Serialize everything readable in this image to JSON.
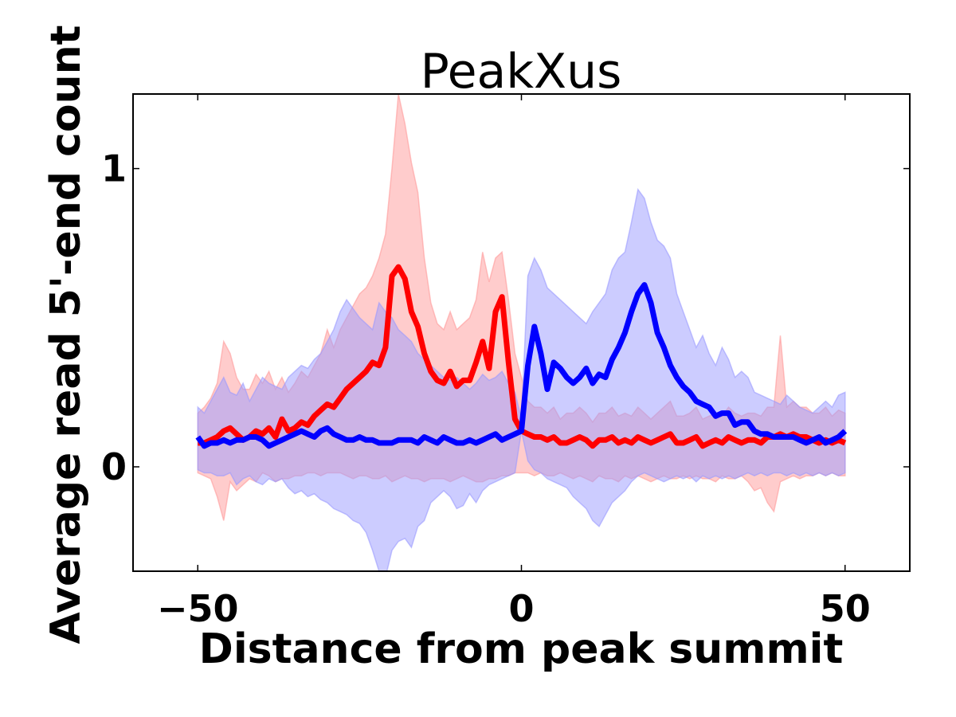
{
  "chart_data": {
    "type": "line",
    "title": "PeakXus",
    "xlabel": "Distance from peak summit",
    "ylabel": "Average read 5'-end count",
    "xlim": [
      -60,
      60
    ],
    "ylim": [
      -0.35,
      1.25
    ],
    "xticks": [
      -50,
      0,
      50
    ],
    "xtick_labels": [
      "−50",
      "0",
      "50"
    ],
    "yticks": [
      0,
      1
    ],
    "ytick_labels": [
      "0",
      "1"
    ],
    "grid": false,
    "legend": "none",
    "x": [
      -50,
      -49,
      -48,
      -47,
      -46,
      -45,
      -44,
      -43,
      -42,
      -41,
      -40,
      -39,
      -38,
      -37,
      -36,
      -35,
      -34,
      -33,
      -32,
      -31,
      -30,
      -29,
      -28,
      -27,
      -26,
      -25,
      -24,
      -23,
      -22,
      -21,
      -20,
      -19,
      -18,
      -17,
      -16,
      -15,
      -14,
      -13,
      -12,
      -11,
      -10,
      -9,
      -8,
      -7,
      -6,
      -5,
      -4,
      -3,
      -2,
      -1,
      0,
      1,
      2,
      3,
      4,
      5,
      6,
      7,
      8,
      9,
      10,
      11,
      12,
      13,
      14,
      15,
      16,
      17,
      18,
      19,
      20,
      21,
      22,
      23,
      24,
      25,
      26,
      27,
      28,
      29,
      30,
      31,
      32,
      33,
      34,
      35,
      36,
      37,
      38,
      39,
      40,
      41,
      42,
      43,
      44,
      45,
      46,
      47,
      48,
      49,
      50
    ],
    "series": [
      {
        "color": "#ff0000",
        "band_color": "#ff9999",
        "values": [
          0.08,
          0.08,
          0.09,
          0.1,
          0.12,
          0.13,
          0.11,
          0.09,
          0.1,
          0.12,
          0.11,
          0.13,
          0.1,
          0.16,
          0.12,
          0.13,
          0.15,
          0.14,
          0.17,
          0.19,
          0.21,
          0.2,
          0.23,
          0.26,
          0.28,
          0.3,
          0.32,
          0.35,
          0.34,
          0.4,
          0.64,
          0.67,
          0.63,
          0.52,
          0.47,
          0.38,
          0.32,
          0.29,
          0.28,
          0.32,
          0.27,
          0.29,
          0.29,
          0.35,
          0.42,
          0.33,
          0.52,
          0.57,
          0.35,
          0.16,
          0.12,
          0.11,
          0.1,
          0.1,
          0.09,
          0.1,
          0.08,
          0.08,
          0.09,
          0.1,
          0.09,
          0.07,
          0.09,
          0.09,
          0.1,
          0.08,
          0.09,
          0.08,
          0.1,
          0.09,
          0.08,
          0.09,
          0.1,
          0.11,
          0.08,
          0.08,
          0.09,
          0.1,
          0.07,
          0.08,
          0.09,
          0.08,
          0.1,
          0.09,
          0.08,
          0.09,
          0.09,
          0.08,
          0.1,
          0.1,
          0.11,
          0.1,
          0.11,
          0.1,
          0.1,
          0.09,
          0.08,
          0.09,
          0.08,
          0.09,
          0.08
        ],
        "lower": [
          -0.02,
          -0.03,
          -0.04,
          -0.1,
          -0.18,
          -0.05,
          -0.08,
          -0.06,
          -0.04,
          -0.05,
          -0.02,
          -0.03,
          -0.05,
          -0.04,
          -0.04,
          -0.03,
          -0.03,
          -0.02,
          -0.02,
          -0.03,
          -0.02,
          -0.02,
          -0.02,
          -0.03,
          -0.04,
          -0.03,
          -0.03,
          -0.04,
          -0.04,
          -0.03,
          -0.05,
          -0.04,
          -0.03,
          -0.04,
          -0.04,
          -0.05,
          -0.04,
          -0.04,
          -0.04,
          -0.05,
          -0.04,
          -0.03,
          -0.04,
          -0.05,
          -0.05,
          -0.04,
          -0.04,
          -0.03,
          -0.03,
          -0.02,
          -0.02,
          -0.02,
          -0.03,
          -0.02,
          -0.03,
          -0.03,
          -0.02,
          -0.03,
          -0.04,
          -0.03,
          -0.04,
          -0.05,
          -0.03,
          -0.04,
          -0.04,
          -0.05,
          -0.03,
          -0.04,
          -0.03,
          -0.04,
          -0.05,
          -0.04,
          -0.03,
          -0.04,
          -0.04,
          -0.03,
          -0.04,
          -0.03,
          -0.04,
          -0.04,
          -0.05,
          -0.03,
          -0.04,
          -0.04,
          -0.03,
          -0.05,
          -0.08,
          -0.07,
          -0.12,
          -0.15,
          -0.05,
          -0.04,
          -0.03,
          -0.04,
          -0.03,
          -0.03,
          -0.02,
          -0.03,
          -0.02,
          -0.03,
          -0.03
        ],
        "upper": [
          0.18,
          0.2,
          0.23,
          0.28,
          0.42,
          0.38,
          0.3,
          0.26,
          0.26,
          0.31,
          0.28,
          0.32,
          0.26,
          0.3,
          0.25,
          0.28,
          0.32,
          0.3,
          0.34,
          0.38,
          0.46,
          0.4,
          0.46,
          0.5,
          0.54,
          0.58,
          0.6,
          0.64,
          0.7,
          0.78,
          1.0,
          1.25,
          1.15,
          1.02,
          0.92,
          0.7,
          0.55,
          0.48,
          0.46,
          0.52,
          0.46,
          0.48,
          0.5,
          0.56,
          0.72,
          0.62,
          0.7,
          0.72,
          0.56,
          0.38,
          0.3,
          0.22,
          0.2,
          0.2,
          0.18,
          0.2,
          0.16,
          0.18,
          0.18,
          0.2,
          0.18,
          0.15,
          0.18,
          0.18,
          0.2,
          0.17,
          0.18,
          0.17,
          0.2,
          0.18,
          0.16,
          0.18,
          0.2,
          0.22,
          0.17,
          0.17,
          0.18,
          0.2,
          0.16,
          0.17,
          0.18,
          0.17,
          0.2,
          0.18,
          0.17,
          0.18,
          0.18,
          0.17,
          0.2,
          0.2,
          0.44,
          0.2,
          0.22,
          0.2,
          0.2,
          0.18,
          0.18,
          0.2,
          0.17,
          0.19,
          0.18
        ]
      },
      {
        "color": "#0000ff",
        "band_color": "#9999ff",
        "values": [
          0.1,
          0.07,
          0.08,
          0.08,
          0.09,
          0.08,
          0.09,
          0.09,
          0.1,
          0.1,
          0.09,
          0.07,
          0.08,
          0.09,
          0.1,
          0.11,
          0.12,
          0.11,
          0.1,
          0.12,
          0.13,
          0.11,
          0.1,
          0.09,
          0.09,
          0.1,
          0.09,
          0.09,
          0.08,
          0.08,
          0.08,
          0.09,
          0.09,
          0.09,
          0.08,
          0.1,
          0.09,
          0.08,
          0.1,
          0.09,
          0.08,
          0.08,
          0.09,
          0.08,
          0.09,
          0.1,
          0.11,
          0.09,
          0.1,
          0.11,
          0.12,
          0.34,
          0.47,
          0.38,
          0.26,
          0.35,
          0.33,
          0.3,
          0.28,
          0.3,
          0.33,
          0.28,
          0.31,
          0.3,
          0.36,
          0.4,
          0.45,
          0.52,
          0.58,
          0.61,
          0.55,
          0.45,
          0.4,
          0.34,
          0.3,
          0.27,
          0.25,
          0.22,
          0.21,
          0.2,
          0.17,
          0.18,
          0.18,
          0.14,
          0.15,
          0.15,
          0.12,
          0.11,
          0.11,
          0.1,
          0.1,
          0.1,
          0.1,
          0.09,
          0.08,
          0.09,
          0.1,
          0.08,
          0.09,
          0.1,
          0.12
        ],
        "lower": [
          -0.01,
          -0.02,
          -0.02,
          -0.03,
          -0.03,
          -0.02,
          -0.06,
          -0.04,
          -0.03,
          -0.05,
          -0.06,
          -0.04,
          -0.05,
          -0.04,
          -0.07,
          -0.09,
          -0.08,
          -0.1,
          -0.09,
          -0.11,
          -0.12,
          -0.14,
          -0.15,
          -0.16,
          -0.18,
          -0.19,
          -0.22,
          -0.28,
          -0.35,
          -0.37,
          -0.28,
          -0.25,
          -0.24,
          -0.27,
          -0.2,
          -0.18,
          -0.12,
          -0.1,
          -0.08,
          -0.1,
          -0.14,
          -0.13,
          -0.09,
          -0.12,
          -0.08,
          -0.06,
          -0.05,
          -0.04,
          -0.03,
          -0.02,
          0.12,
          0.02,
          -0.01,
          -0.02,
          -0.04,
          -0.05,
          -0.06,
          -0.07,
          -0.1,
          -0.12,
          -0.14,
          -0.18,
          -0.2,
          -0.16,
          -0.12,
          -0.1,
          -0.08,
          -0.05,
          -0.03,
          -0.02,
          -0.03,
          -0.04,
          -0.05,
          -0.04,
          -0.03,
          -0.04,
          -0.03,
          -0.05,
          -0.03,
          -0.04,
          -0.03,
          -0.04,
          -0.03,
          -0.04,
          -0.03,
          -0.02,
          -0.03,
          -0.02,
          -0.03,
          -0.02,
          -0.02,
          -0.03,
          -0.02,
          -0.03,
          -0.02,
          -0.03,
          -0.02,
          -0.03,
          -0.02,
          -0.03,
          -0.02
        ],
        "upper": [
          0.2,
          0.18,
          0.22,
          0.26,
          0.3,
          0.25,
          0.24,
          0.28,
          0.22,
          0.26,
          0.3,
          0.28,
          0.27,
          0.26,
          0.3,
          0.32,
          0.34,
          0.33,
          0.36,
          0.38,
          0.42,
          0.46,
          0.52,
          0.56,
          0.53,
          0.5,
          0.48,
          0.46,
          0.55,
          0.52,
          0.5,
          0.46,
          0.44,
          0.42,
          0.38,
          0.36,
          0.34,
          0.32,
          0.3,
          0.29,
          0.3,
          0.28,
          0.26,
          0.28,
          0.31,
          0.29,
          0.3,
          0.32,
          0.28,
          0.25,
          0.16,
          0.64,
          0.7,
          0.66,
          0.6,
          0.58,
          0.56,
          0.54,
          0.52,
          0.5,
          0.48,
          0.52,
          0.55,
          0.58,
          0.66,
          0.7,
          0.72,
          0.82,
          0.93,
          0.9,
          0.82,
          0.76,
          0.74,
          0.7,
          0.58,
          0.52,
          0.46,
          0.4,
          0.44,
          0.38,
          0.34,
          0.4,
          0.36,
          0.3,
          0.32,
          0.3,
          0.25,
          0.24,
          0.23,
          0.22,
          0.21,
          0.24,
          0.22,
          0.2,
          0.19,
          0.18,
          0.2,
          0.22,
          0.2,
          0.24,
          0.25
        ]
      }
    ]
  }
}
